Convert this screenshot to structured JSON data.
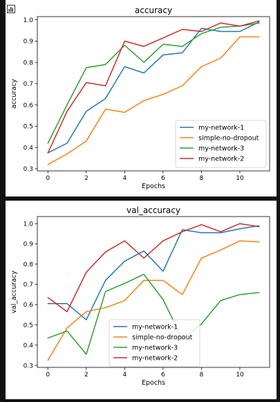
{
  "toolbar": {
    "icon": "bar-chart-icon"
  },
  "chart_data": [
    {
      "type": "line",
      "title": "accuracy",
      "xlabel": "Epochs",
      "ylabel": "accuracy",
      "xlim": [
        -0.55,
        11.55
      ],
      "ylim": [
        0.29,
        1.015
      ],
      "xticks": [
        0,
        2,
        4,
        6,
        8,
        10
      ],
      "yticks": [
        0.3,
        0.4,
        0.5,
        0.6,
        0.7,
        0.8,
        0.9,
        1.0
      ],
      "grid": false,
      "legend": "lower right",
      "x": [
        0,
        1,
        2,
        3,
        4,
        5,
        6,
        7,
        8,
        9,
        10,
        11
      ],
      "series": [
        {
          "name": "my-network-1",
          "color": "#1f77b4",
          "values": [
            0.375,
            0.42,
            0.57,
            0.63,
            0.78,
            0.75,
            0.835,
            0.845,
            0.96,
            0.945,
            0.945,
            0.99
          ]
        },
        {
          "name": "simple-no-dropout",
          "color": "#ff7f0e",
          "values": [
            0.32,
            0.37,
            0.43,
            0.58,
            0.565,
            0.62,
            0.65,
            0.69,
            0.78,
            0.82,
            0.92,
            0.92
          ]
        },
        {
          "name": "my-network-3",
          "color": "#2ca02c",
          "values": [
            0.42,
            0.6,
            0.775,
            0.79,
            0.88,
            0.8,
            0.885,
            0.875,
            0.935,
            0.965,
            0.97,
            0.985
          ]
        },
        {
          "name": "my-network-2",
          "color": "#d62728",
          "values": [
            0.375,
            0.57,
            0.705,
            0.69,
            0.9,
            0.875,
            0.915,
            0.955,
            0.945,
            0.985,
            0.97,
            0.995
          ]
        }
      ]
    },
    {
      "type": "line",
      "title": "val_accuracy",
      "xlabel": "Epochs",
      "ylabel": "val_accuracy",
      "xlim": [
        -0.55,
        11.55
      ],
      "ylim": [
        0.29,
        1.035
      ],
      "xticks": [
        0,
        2,
        4,
        6,
        8,
        10
      ],
      "yticks": [
        0.3,
        0.4,
        0.5,
        0.6,
        0.7,
        0.8,
        0.9,
        1.0
      ],
      "grid": false,
      "legend": "lower center",
      "x": [
        0,
        1,
        2,
        3,
        4,
        5,
        6,
        7,
        8,
        9,
        10,
        11
      ],
      "series": [
        {
          "name": "my-network-1",
          "color": "#1f77b4",
          "values": [
            0.605,
            0.605,
            0.525,
            0.72,
            0.815,
            0.865,
            0.765,
            0.97,
            0.955,
            0.955,
            0.975,
            0.99
          ]
        },
        {
          "name": "simple-no-dropout",
          "color": "#ff7f0e",
          "values": [
            0.325,
            0.485,
            0.565,
            0.585,
            0.62,
            0.72,
            0.72,
            0.65,
            0.83,
            0.87,
            0.915,
            0.91
          ]
        },
        {
          "name": "my-network-3",
          "color": "#2ca02c",
          "values": [
            0.435,
            0.47,
            0.355,
            0.665,
            0.705,
            0.75,
            0.625,
            0.43,
            0.505,
            0.62,
            0.65,
            0.66
          ]
        },
        {
          "name": "my-network-2",
          "color": "#d62728",
          "values": [
            0.635,
            0.565,
            0.76,
            0.86,
            0.915,
            0.83,
            0.915,
            0.96,
            0.995,
            0.96,
            1.0,
            0.985
          ]
        }
      ]
    }
  ]
}
